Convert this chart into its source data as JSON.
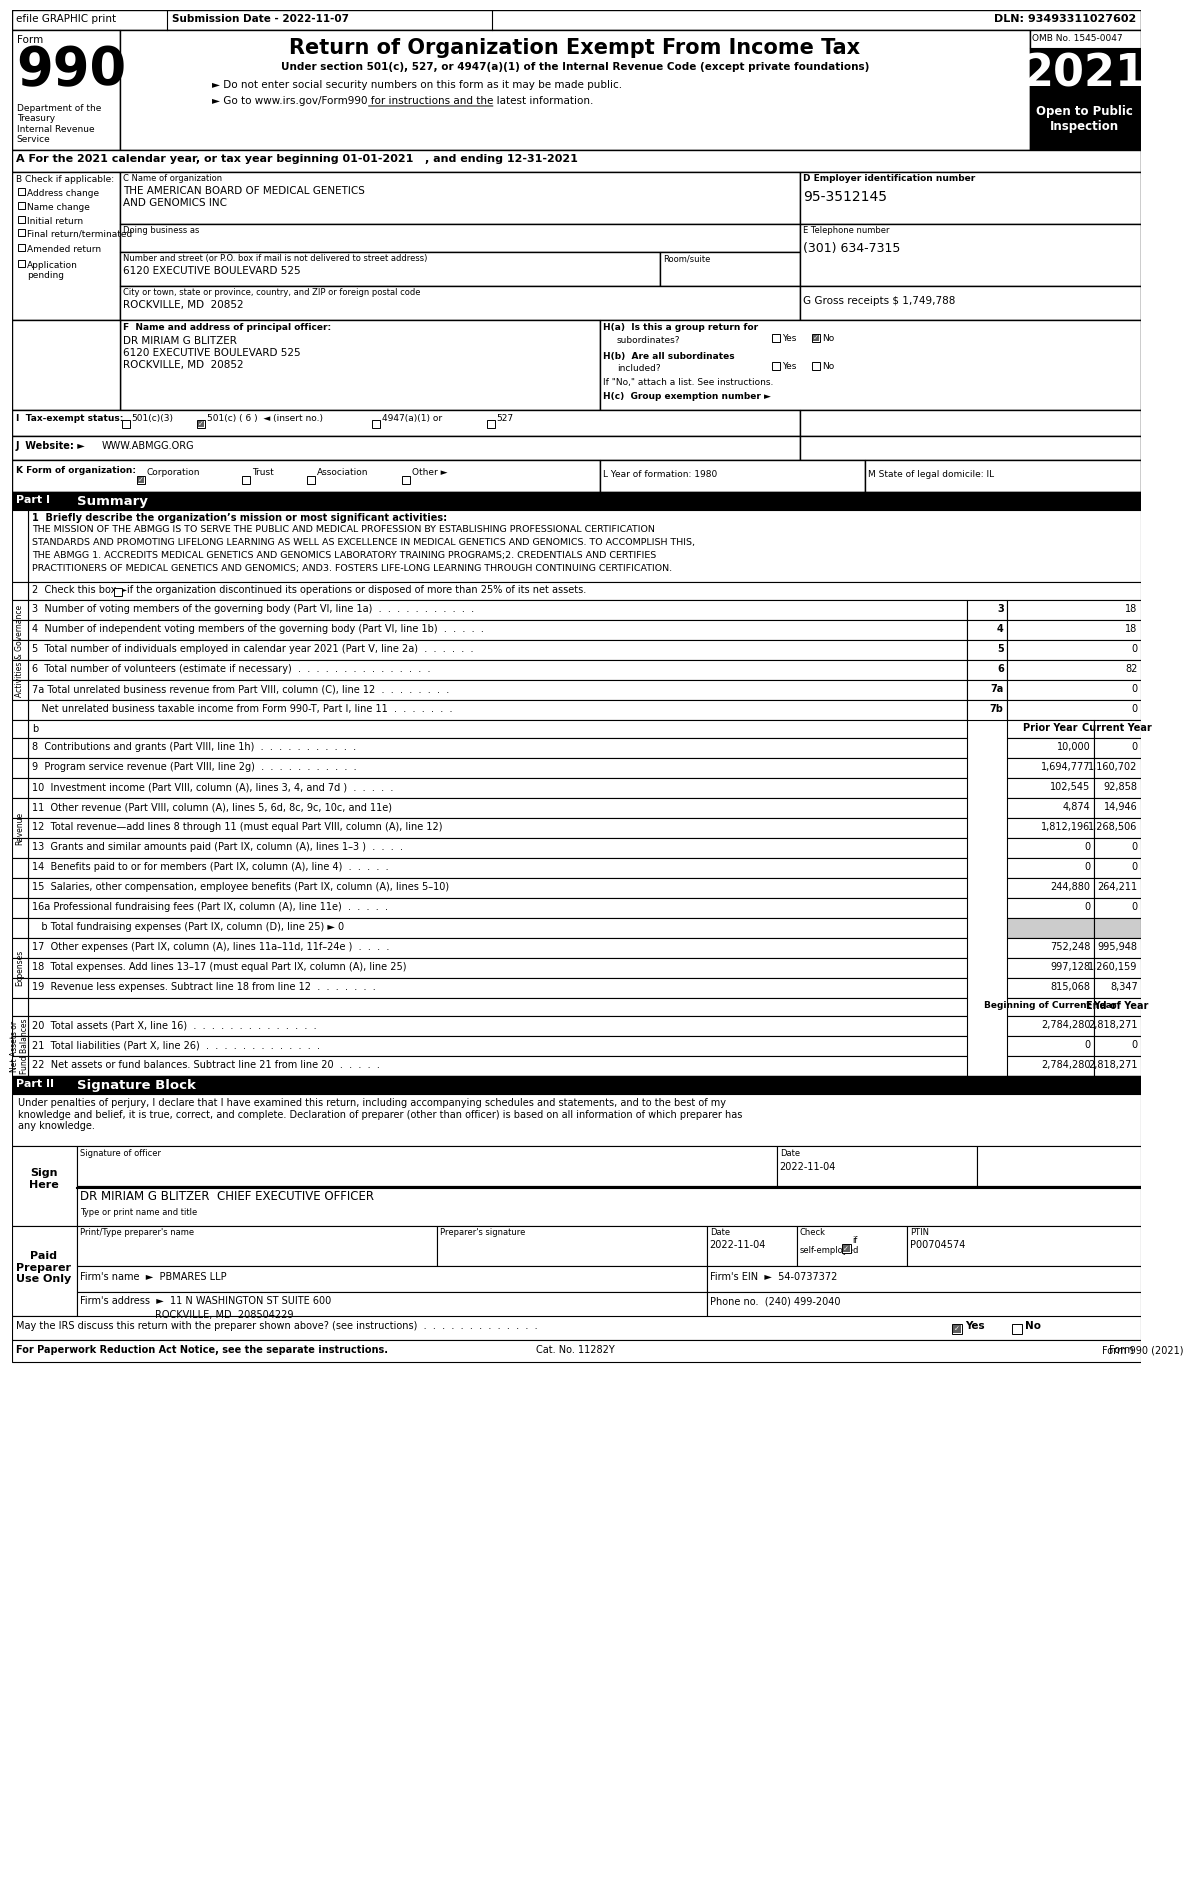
{
  "header_left": "efile GRAPHIC print",
  "header_submission": "Submission Date - 2022-11-07",
  "header_dln": "DLN: 93493311027602",
  "form_number": "990",
  "form_label": "Form",
  "title": "Return of Organization Exempt From Income Tax",
  "subtitle1": "Under section 501(c), 527, or 4947(a)(1) of the Internal Revenue Code (except private foundations)",
  "subtitle2": "► Do not enter social security numbers on this form as it may be made public.",
  "subtitle3": "► Go to www.irs.gov/Form990 for instructions and the latest information.",
  "omb": "OMB No. 1545-0047",
  "year": "2021",
  "open_to_public": "Open to Public\nInspection",
  "dept": "Department of the\nTreasury\nInternal Revenue\nService",
  "tax_year_line": "A For the 2021 calendar year, or tax year beginning 01-01-2021   , and ending 12-31-2021",
  "b_label": "B Check if applicable:",
  "b_items": [
    "Address change",
    "Name change",
    "Initial return",
    "Final return/terminated",
    "Amended return",
    "Application\npending"
  ],
  "c_label": "C Name of organization",
  "org_name1": "THE AMERICAN BOARD OF MEDICAL GENETICS",
  "org_name2": "AND GENOMICS INC",
  "dba_label": "Doing business as",
  "street_label": "Number and street (or P.O. box if mail is not delivered to street address)",
  "room_label": "Room/suite",
  "street": "6120 EXECUTIVE BOULEVARD 525",
  "city_label": "City or town, state or province, country, and ZIP or foreign postal code",
  "city": "ROCKVILLE, MD  20852",
  "d_label": "D Employer identification number",
  "ein": "95-3512145",
  "e_label": "E Telephone number",
  "phone": "(301) 634-7315",
  "g_label": "G Gross receipts $",
  "gross_receipts": "1,749,788",
  "f_label": "F  Name and address of principal officer:",
  "officer_name": "DR MIRIAM G BLITZER",
  "officer_addr1": "6120 EXECUTIVE BOULEVARD 525",
  "officer_addr2": "ROCKVILLE, MD  20852",
  "ha_label": "H(a)  Is this a group return for",
  "ha_sub": "subordinates?",
  "hb_label": "H(b)  Are all subordinates",
  "hb_sub": "included?",
  "hb_note": "If \"No,\" attach a list. See instructions.",
  "hc_label": "H(c)  Group exemption number ►",
  "i_label": "I  Tax-exempt status:",
  "j_label": "J  Website: ►",
  "website": "WWW.ABMGG.ORG",
  "k_label": "K Form of organization:",
  "l_label": "L Year of formation: 1980",
  "m_label": "M State of legal domicile: IL",
  "part1_label": "Part I",
  "part1_title": "Summary",
  "line1_label": "1  Briefly describe the organization’s mission or most significant activities:",
  "mission_lines": [
    "THE MISSION OF THE ABMGG IS TO SERVE THE PUBLIC AND MEDICAL PROFESSION BY ESTABLISHING PROFESSIONAL CERTIFICATION",
    "STANDARDS AND PROMOTING LIFELONG LEARNING AS WELL AS EXCELLENCE IN MEDICAL GENETICS AND GENOMICS. TO ACCOMPLISH THIS,",
    "THE ABMGG 1. ACCREDITS MEDICAL GENETICS AND GENOMICS LABORATORY TRAINING PROGRAMS;2. CREDENTIALS AND CERTIFIES",
    "PRACTITIONERS OF MEDICAL GENETICS AND GENOMICS; AND3. FOSTERS LIFE-LONG LEARNING THROUGH CONTINUING CERTIFICATION."
  ],
  "line2_label": "2  Check this box ►",
  "line2_rest": " if the organization discontinued its operations or disposed of more than 25% of its net assets.",
  "line3_label": "3  Number of voting members of the governing body (Part VI, line 1a)  .  .  .  .  .  .  .  .  .  .  .",
  "line3_val": "18",
  "line4_label": "4  Number of independent voting members of the governing body (Part VI, line 1b)  .  .  .  .  .",
  "line4_val": "18",
  "line5_label": "5  Total number of individuals employed in calendar year 2021 (Part V, line 2a)  .  .  .  .  .  .",
  "line5_val": "0",
  "line6_label": "6  Total number of volunteers (estimate if necessary)  .  .  .  .  .  .  .  .  .  .  .  .  .  .  .",
  "line6_val": "82",
  "line7a_label": "7a Total unrelated business revenue from Part VIII, column (C), line 12  .  .  .  .  .  .  .  .",
  "line7a_val": "0",
  "line7b_label": "   Net unrelated business taxable income from Form 990-T, Part I, line 11  .  .  .  .  .  .  .",
  "line7b_val": "0",
  "prior_year": "Prior Year",
  "current_year": "Current Year",
  "line8_label": "8  Contributions and grants (Part VIII, line 1h)  .  .  .  .  .  .  .  .  .  .  .",
  "line8_prior": "10,000",
  "line8_current": "0",
  "line9_label": "9  Program service revenue (Part VIII, line 2g)  .  .  .  .  .  .  .  .  .  .  .",
  "line9_prior": "1,694,777",
  "line9_current": "1,160,702",
  "line10_label": "10  Investment income (Part VIII, column (A), lines 3, 4, and 7d )  .  .  .  .  .",
  "line10_prior": "102,545",
  "line10_current": "92,858",
  "line11_label": "11  Other revenue (Part VIII, column (A), lines 5, 6d, 8c, 9c, 10c, and 11e)",
  "line11_prior": "4,874",
  "line11_current": "14,946",
  "line12_label": "12  Total revenue—add lines 8 through 11 (must equal Part VIII, column (A), line 12)",
  "line12_prior": "1,812,196",
  "line12_current": "1,268,506",
  "line13_label": "13  Grants and similar amounts paid (Part IX, column (A), lines 1–3 )  .  .  .  .",
  "line13_prior": "0",
  "line13_current": "0",
  "line14_label": "14  Benefits paid to or for members (Part IX, column (A), line 4)  .  .  .  .  .",
  "line14_prior": "0",
  "line14_current": "0",
  "line15_label": "15  Salaries, other compensation, employee benefits (Part IX, column (A), lines 5–10)",
  "line15_prior": "244,880",
  "line15_current": "264,211",
  "line16a_label": "16a Professional fundraising fees (Part IX, column (A), line 11e)  .  .  .  .  .",
  "line16a_prior": "0",
  "line16a_current": "0",
  "line16b_label": "   b Total fundraising expenses (Part IX, column (D), line 25) ► 0",
  "line17_label": "17  Other expenses (Part IX, column (A), lines 11a–11d, 11f–24e )  .  .  .  .",
  "line17_prior": "752,248",
  "line17_current": "995,948",
  "line18_label": "18  Total expenses. Add lines 13–17 (must equal Part IX, column (A), line 25)",
  "line18_prior": "997,128",
  "line18_current": "1,260,159",
  "line19_label": "19  Revenue less expenses. Subtract line 18 from line 12  .  .  .  .  .  .  .",
  "line19_prior": "815,068",
  "line19_current": "8,347",
  "beginning_year": "Beginning of Current Year",
  "end_year": "End of Year",
  "line20_label": "20  Total assets (Part X, line 16)  .  .  .  .  .  .  .  .  .  .  .  .  .  .",
  "line20_begin": "2,784,280",
  "line20_end": "2,818,271",
  "line21_label": "21  Total liabilities (Part X, line 26)  .  .  .  .  .  .  .  .  .  .  .  .  .",
  "line21_begin": "0",
  "line21_end": "0",
  "line22_label": "22  Net assets or fund balances. Subtract line 21 from line 20  .  .  .  .  .",
  "line22_begin": "2,784,280",
  "line22_end": "2,818,271",
  "part2_label": "Part II",
  "part2_title": "Signature Block",
  "sig_declaration": "Under penalties of perjury, I declare that I have examined this return, including accompanying schedules and statements, and to the best of my\nknowledge and belief, it is true, correct, and complete. Declaration of preparer (other than officer) is based on all information of which preparer has\nany knowledge.",
  "sign_here": "Sign\nHere",
  "sig_label": "Signature of officer",
  "sig_date": "2022-11-04",
  "sig_name": "DR MIRIAM G BLITZER  CHIEF EXECUTIVE OFFICER",
  "sig_name_label": "Type or print name and title",
  "paid_preparer": "Paid\nPreparer\nUse Only",
  "preparer_name_label": "Print/Type preparer's name",
  "preparer_sig_label": "Preparer's signature",
  "prep_date": "2022-11-04",
  "prep_ptin": "P00704574",
  "firm_name": "PBMARES LLP",
  "firm_ein": "54-0737372",
  "firm_addr": "11 N WASHINGTON ST SUITE 600",
  "firm_city": "ROCKVILLE, MD  208504229",
  "firm_phone": "(240) 499-2040",
  "discuss_label": "May the IRS discuss this return with the preparer shown above? (see instructions)",
  "footer1": "For Paperwork Reduction Act Notice, see the separate instructions.",
  "footer_cat": "Cat. No. 11282Y",
  "footer_form": "Form 990 (2021)",
  "activities_label": "Activities & Governance",
  "revenue_label": "Revenue",
  "expenses_label": "Expenses",
  "net_assets_label": "Net Assets or\nFund Balances"
}
